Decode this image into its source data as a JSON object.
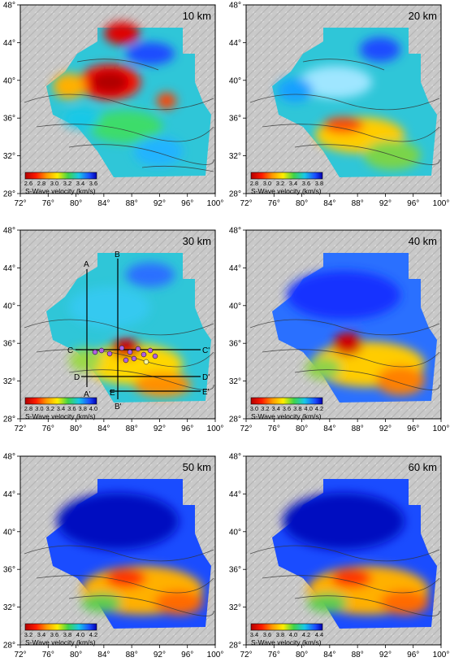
{
  "figure": {
    "x_ticks": [
      "72°",
      "76°",
      "80°",
      "84°",
      "88°",
      "92°",
      "96°",
      "100°"
    ],
    "y_ticks": [
      "28°",
      "32°",
      "36°",
      "40°",
      "44°",
      "48°"
    ],
    "panels": [
      {
        "depth_label": "10 km",
        "scale_ticks": [
          "2.6",
          "2.8",
          "3.0",
          "3.2",
          "3.4",
          "3.6"
        ],
        "scale_caption": "S-Wave velocity (km/s)"
      },
      {
        "depth_label": "20 km",
        "scale_ticks": [
          "2.8",
          "3.0",
          "3.2",
          "3.4",
          "3.6",
          "3.8"
        ],
        "scale_caption": "S-Wave velocity (km/s)"
      },
      {
        "depth_label": "30 km",
        "scale_ticks": [
          "2.8",
          "3.0",
          "3.2",
          "3.4",
          "3.6",
          "3.8",
          "4.0"
        ],
        "scale_caption": "S-Wave velocity (km/s)"
      },
      {
        "depth_label": "40 km",
        "scale_ticks": [
          "3.0",
          "3.2",
          "3.4",
          "3.6",
          "3.8",
          "4.0",
          "4.2"
        ],
        "scale_caption": "S-Wave velocity (km/s)"
      },
      {
        "depth_label": "50 km",
        "scale_ticks": [
          "3.2",
          "3.4",
          "3.6",
          "3.8",
          "4.0",
          "4.2"
        ],
        "scale_caption": "S-Wave velocity (km/s)"
      },
      {
        "depth_label": "60 km",
        "scale_ticks": [
          "3.4",
          "3.6",
          "3.8",
          "4.0",
          "4.2",
          "4.4"
        ],
        "scale_caption": "S-Wave velocity (km/s)"
      }
    ],
    "profiles": [
      {
        "start": "A",
        "end": "A'"
      },
      {
        "start": "B",
        "end": "B'"
      },
      {
        "start": "C",
        "end": "C'"
      },
      {
        "start": "D",
        "end": "D'"
      },
      {
        "start": "E",
        "end": "E'"
      }
    ]
  }
}
